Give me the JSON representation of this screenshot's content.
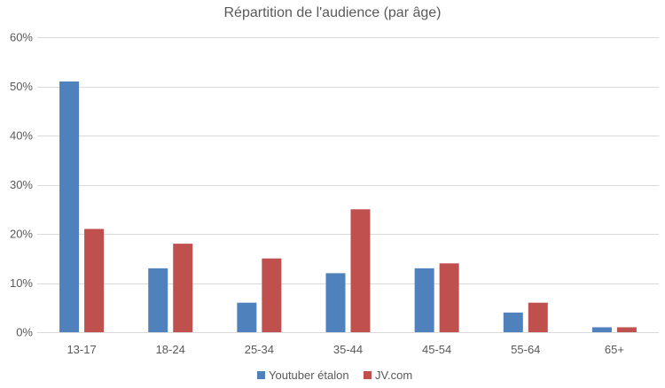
{
  "chart_data": {
    "type": "bar",
    "title": "Répartition de l'audience (par âge)",
    "xlabel": "",
    "ylabel": "",
    "categories": [
      "13-17",
      "18-24",
      "25-34",
      "35-44",
      "45-54",
      "55-64",
      "65+"
    ],
    "series": [
      {
        "name": "Youtuber étalon",
        "color": "#4F81BD",
        "values": [
          51,
          13,
          6,
          12,
          13,
          4,
          1
        ]
      },
      {
        "name": "JV.com",
        "color": "#C0504D",
        "values": [
          21,
          18,
          15,
          25,
          14,
          6,
          1
        ]
      }
    ],
    "ylim": [
      0,
      60
    ],
    "yticks": [
      "0%",
      "10%",
      "20%",
      "30%",
      "40%",
      "50%",
      "60%"
    ],
    "grid": true,
    "legend_position": "bottom"
  }
}
